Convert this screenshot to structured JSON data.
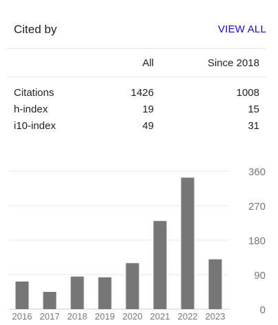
{
  "header": {
    "title": "Cited by",
    "view_all_label": "VIEW ALL"
  },
  "table": {
    "columns": [
      "",
      "All",
      "Since 2018"
    ],
    "rows": [
      {
        "label": "Citations",
        "all": "1426",
        "since": "1008"
      },
      {
        "label": "h-index",
        "all": "19",
        "since": "15"
      },
      {
        "label": "i10-index",
        "all": "49",
        "since": "31"
      }
    ]
  },
  "chart_data": {
    "type": "bar",
    "categories": [
      "2016",
      "2017",
      "2018",
      "2019",
      "2020",
      "2021",
      "2022",
      "2023"
    ],
    "values": [
      72,
      45,
      85,
      83,
      120,
      230,
      343,
      130
    ],
    "ylim": [
      0,
      360
    ],
    "yticks": [
      0,
      90,
      180,
      270,
      360
    ],
    "grid": true,
    "bar_color": "#777777"
  }
}
